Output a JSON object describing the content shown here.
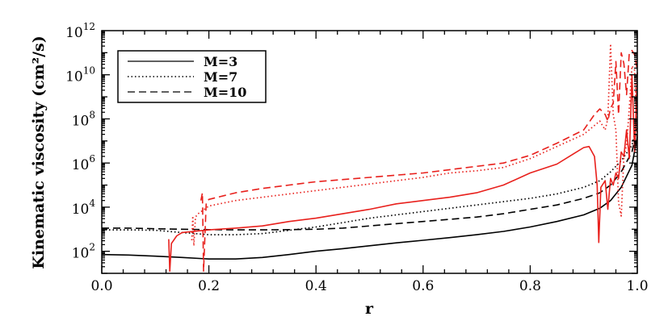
{
  "chart_data": {
    "type": "line",
    "xlabel": "r",
    "ylabel": "Kinematic viscosity (cm²/s)",
    "yscale": "log",
    "xlim": [
      0.0,
      1.0
    ],
    "ylim_log10": [
      1,
      12
    ],
    "x_ticks": [
      "0.0",
      "0.2",
      "0.4",
      "0.6",
      "0.8",
      "1.0"
    ],
    "x_tick_values": [
      0.0,
      0.2,
      0.4,
      0.6,
      0.8,
      1.0
    ],
    "y_ticks": [
      {
        "base": "10",
        "exp": "2",
        "log": 2
      },
      {
        "base": "10",
        "exp": "4",
        "log": 4
      },
      {
        "base": "10",
        "exp": "6",
        "log": 6
      },
      {
        "base": "10",
        "exp": "8",
        "log": 8
      },
      {
        "base": "10",
        "exp": "10",
        "log": 10
      },
      {
        "base": "10",
        "exp": "12",
        "log": 12
      }
    ],
    "grid": false,
    "legend_position": "top-left",
    "legend": [
      {
        "label": "M=3",
        "style": "solid"
      },
      {
        "label": "M=7",
        "style": "dotted"
      },
      {
        "label": "M=10",
        "style": "dashed"
      }
    ],
    "colors": {
      "black": "#000000",
      "red": "#e8201c"
    },
    "series": [
      {
        "model": "M=3",
        "color": "black",
        "style": "solid",
        "x": [
          0.0,
          0.05,
          0.1,
          0.15,
          0.2,
          0.25,
          0.3,
          0.35,
          0.4,
          0.45,
          0.5,
          0.55,
          0.6,
          0.65,
          0.7,
          0.75,
          0.8,
          0.85,
          0.9,
          0.93,
          0.95,
          0.97,
          0.99,
          1.0
        ],
        "y_log10": [
          1.85,
          1.83,
          1.78,
          1.72,
          1.65,
          1.65,
          1.72,
          1.85,
          2.0,
          2.12,
          2.25,
          2.38,
          2.5,
          2.62,
          2.75,
          2.9,
          3.1,
          3.35,
          3.65,
          3.95,
          4.3,
          4.9,
          5.9,
          7.2
        ]
      },
      {
        "model": "M=7",
        "color": "black",
        "style": "dotted",
        "x": [
          0.0,
          0.05,
          0.1,
          0.15,
          0.2,
          0.25,
          0.3,
          0.35,
          0.4,
          0.45,
          0.5,
          0.55,
          0.6,
          0.65,
          0.7,
          0.75,
          0.8,
          0.85,
          0.9,
          0.93,
          0.95,
          0.97,
          0.99,
          1.0
        ],
        "y_log10": [
          2.97,
          2.97,
          2.95,
          2.85,
          2.75,
          2.75,
          2.8,
          2.95,
          3.1,
          3.3,
          3.5,
          3.65,
          3.8,
          3.95,
          4.1,
          4.25,
          4.4,
          4.6,
          4.9,
          5.2,
          5.6,
          6.1,
          6.8,
          7.8
        ]
      },
      {
        "model": "M=10",
        "color": "black",
        "style": "dashed",
        "x": [
          0.0,
          0.05,
          0.1,
          0.15,
          0.2,
          0.25,
          0.3,
          0.35,
          0.4,
          0.45,
          0.5,
          0.55,
          0.6,
          0.65,
          0.7,
          0.75,
          0.8,
          0.85,
          0.9,
          0.93,
          0.95,
          0.97,
          0.99,
          1.0
        ],
        "y_log10": [
          3.05,
          3.05,
          3.02,
          3.0,
          2.98,
          2.97,
          2.97,
          2.98,
          3.0,
          3.05,
          3.15,
          3.25,
          3.35,
          3.45,
          3.55,
          3.7,
          3.9,
          4.1,
          4.4,
          4.65,
          5.0,
          5.6,
          6.5,
          7.6
        ]
      },
      {
        "model": "M=3",
        "color": "red",
        "style": "solid",
        "x": [
          0.125,
          0.127,
          0.13,
          0.14,
          0.15,
          0.2,
          0.25,
          0.3,
          0.35,
          0.4,
          0.45,
          0.5,
          0.55,
          0.6,
          0.65,
          0.7,
          0.75,
          0.8,
          0.85,
          0.88,
          0.9,
          0.91,
          0.92,
          0.925,
          0.928,
          0.932,
          0.94,
          0.945,
          0.95,
          0.955,
          0.96,
          0.965,
          0.97,
          0.975,
          0.98,
          0.985,
          0.99,
          0.995,
          1.0
        ],
        "y_log10": [
          2.55,
          1.1,
          2.35,
          2.7,
          2.85,
          2.97,
          3.05,
          3.15,
          3.35,
          3.5,
          3.7,
          3.9,
          4.15,
          4.3,
          4.45,
          4.65,
          5.0,
          5.55,
          5.95,
          6.4,
          6.7,
          6.75,
          6.3,
          5.0,
          2.4,
          4.9,
          5.2,
          3.9,
          5.3,
          5.0,
          5.55,
          5.3,
          6.5,
          6.3,
          7.5,
          6.2,
          10.0,
          6.5,
          10.1
        ]
      },
      {
        "model": "M=7",
        "color": "red",
        "style": "dotted",
        "x": [
          0.168,
          0.17,
          0.172,
          0.175,
          0.18,
          0.2,
          0.25,
          0.3,
          0.35,
          0.4,
          0.45,
          0.5,
          0.55,
          0.6,
          0.65,
          0.7,
          0.75,
          0.8,
          0.85,
          0.9,
          0.93,
          0.94,
          0.945,
          0.95,
          0.955,
          0.96,
          0.965,
          0.97,
          0.975,
          0.98,
          0.985,
          0.99,
          0.995,
          1.0
        ],
        "y_log10": [
          2.5,
          3.6,
          2.25,
          3.55,
          3.7,
          4.05,
          4.3,
          4.45,
          4.6,
          4.75,
          4.9,
          5.05,
          5.2,
          5.35,
          5.55,
          5.65,
          5.8,
          6.2,
          6.75,
          7.3,
          7.9,
          7.5,
          8.0,
          11.4,
          8.2,
          7.5,
          4.2,
          3.6,
          6.3,
          6.8,
          8.5,
          10.4,
          10.2,
          7.2
        ]
      },
      {
        "model": "M=10",
        "color": "red",
        "style": "dashed",
        "x": [
          0.185,
          0.188,
          0.19,
          0.195,
          0.2,
          0.25,
          0.3,
          0.35,
          0.4,
          0.45,
          0.5,
          0.55,
          0.6,
          0.65,
          0.7,
          0.75,
          0.8,
          0.85,
          0.9,
          0.92,
          0.93,
          0.94,
          0.945,
          0.95,
          0.955,
          0.96,
          0.965,
          0.97,
          0.975,
          0.98,
          0.985,
          0.99,
          0.995,
          1.0
        ],
        "y_log10": [
          4.3,
          4.65,
          1.1,
          4.2,
          4.35,
          4.65,
          4.85,
          5.0,
          5.15,
          5.25,
          5.35,
          5.45,
          5.55,
          5.7,
          5.85,
          6.0,
          6.35,
          6.9,
          7.5,
          8.2,
          8.45,
          8.2,
          7.9,
          8.5,
          8.7,
          10.6,
          8.2,
          11.0,
          10.5,
          9.1,
          11.0,
          11.1,
          10.9,
          10.2
        ]
      }
    ]
  }
}
